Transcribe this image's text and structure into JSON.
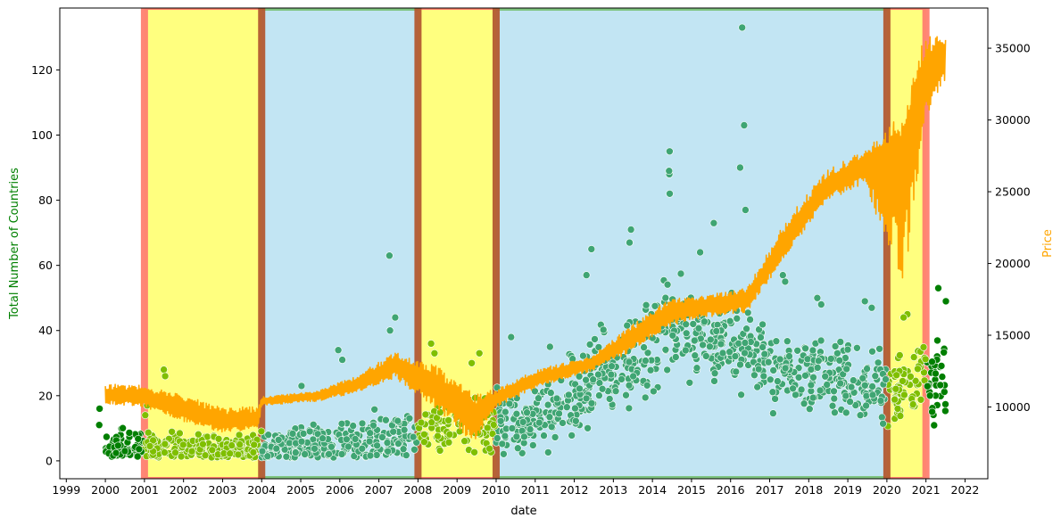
{
  "chart_data": {
    "type": "scatter",
    "xlabel": "date",
    "ylabel_left": "Total Number of Countries",
    "ylabel_right": "Price",
    "x_range": [
      "1998-11-01",
      "2022-08-01"
    ],
    "y_left_range": [
      -5.5,
      139
    ],
    "y_right_range": [
      5000,
      37800
    ],
    "x_ticks": [
      "1999",
      "2000",
      "2001",
      "2002",
      "2003",
      "2004",
      "2005",
      "2006",
      "2007",
      "2008",
      "2009",
      "2010",
      "2011",
      "2012",
      "2013",
      "2014",
      "2015",
      "2016",
      "2017",
      "2018",
      "2019",
      "2020",
      "2021",
      "2022"
    ],
    "y_left_ticks": [
      0,
      20,
      40,
      60,
      80,
      100,
      120
    ],
    "y_right_ticks": [
      10000,
      15000,
      20000,
      25000,
      30000,
      35000
    ],
    "regions": [
      {
        "start": "2001-01-01",
        "end": "2004-01-01",
        "color": "#ffff7f",
        "kind": "yellow"
      },
      {
        "start": "2004-01-01",
        "end": "2008-01-01",
        "color": "#c2e5f3",
        "kind": "blue"
      },
      {
        "start": "2008-01-01",
        "end": "2010-01-01",
        "color": "#ffff7f",
        "kind": "yellow"
      },
      {
        "start": "2010-01-01",
        "end": "2020-01-01",
        "color": "#c2e5f3",
        "kind": "blue"
      },
      {
        "start": "2020-01-01",
        "end": "2021-01-01",
        "color": "#ffff7f",
        "kind": "yellow"
      }
    ],
    "boundaries": [
      "2001-01-01",
      "2004-01-01",
      "2008-01-01",
      "2010-01-01",
      "2020-01-01",
      "2021-01-01"
    ],
    "countries_trend": [
      {
        "date": "2000-01-01",
        "center": 4,
        "spread": 4,
        "outliers": [
          16,
          11
        ]
      },
      {
        "date": "2001-01-01",
        "center": 4,
        "spread": 4,
        "outliers": [
          17,
          14
        ]
      },
      {
        "date": "2001-06-01",
        "center": 4,
        "spread": 4,
        "outliers": [
          28,
          26
        ]
      },
      {
        "date": "2003-01-01",
        "center": 3,
        "spread": 3,
        "outliers": [
          12
        ]
      },
      {
        "date": "2004-01-01",
        "center": 4,
        "spread": 3,
        "outliers": [
          8
        ]
      },
      {
        "date": "2005-01-01",
        "center": 5,
        "spread": 4,
        "outliers": [
          23
        ]
      },
      {
        "date": "2006-01-01",
        "center": 5,
        "spread": 5,
        "outliers": [
          34,
          31
        ]
      },
      {
        "date": "2007-06-01",
        "center": 7,
        "spread": 6,
        "outliers": [
          63,
          44,
          40
        ]
      },
      {
        "date": "2008-06-01",
        "center": 10,
        "spread": 6,
        "outliers": [
          36,
          33
        ]
      },
      {
        "date": "2009-06-01",
        "center": 12,
        "spread": 7,
        "outliers": [
          33,
          30
        ]
      },
      {
        "date": "2010-06-01",
        "center": 12,
        "spread": 7,
        "outliers": [
          38
        ]
      },
      {
        "date": "2011-06-01",
        "center": 14,
        "spread": 8,
        "outliers": [
          35
        ]
      },
      {
        "date": "2012-06-01",
        "center": 24,
        "spread": 10,
        "outliers": [
          57,
          65
        ]
      },
      {
        "date": "2013-06-01",
        "center": 30,
        "spread": 10,
        "outliers": [
          71,
          67
        ]
      },
      {
        "date": "2014-06-01",
        "center": 42,
        "spread": 12,
        "outliers": [
          95,
          88,
          89,
          82
        ]
      },
      {
        "date": "2015-06-01",
        "center": 38,
        "spread": 10,
        "outliers": [
          73,
          64
        ]
      },
      {
        "date": "2016-06-01",
        "center": 35,
        "spread": 10,
        "outliers": [
          133,
          103,
          90,
          77
        ]
      },
      {
        "date": "2017-06-01",
        "center": 28,
        "spread": 9,
        "outliers": [
          57,
          55
        ]
      },
      {
        "date": "2018-06-01",
        "center": 27,
        "spread": 9,
        "outliers": [
          50,
          48
        ]
      },
      {
        "date": "2019-06-01",
        "center": 24,
        "spread": 9,
        "outliers": [
          49,
          47
        ]
      },
      {
        "date": "2020-06-01",
        "center": 22,
        "spread": 10,
        "outliers": [
          45,
          44
        ]
      },
      {
        "date": "2021-06-01",
        "center": 28,
        "spread": 10,
        "outliers": [
          53,
          49
        ]
      }
    ],
    "price_trend": [
      {
        "date": "2000-01-01",
        "low": 10200,
        "mid": 10800,
        "high": 11600
      },
      {
        "date": "2001-01-01",
        "low": 10000,
        "mid": 10700,
        "high": 11500
      },
      {
        "date": "2002-01-01",
        "low": 9000,
        "mid": 9800,
        "high": 10800
      },
      {
        "date": "2003-01-01",
        "low": 8200,
        "mid": 8900,
        "high": 10000
      },
      {
        "date": "2003-12-01",
        "low": 8500,
        "mid": 9200,
        "high": 10000
      },
      {
        "date": "2004-01-01",
        "low": 10100,
        "mid": 10400,
        "high": 10700
      },
      {
        "date": "2005-06-01",
        "low": 10400,
        "mid": 10800,
        "high": 11100
      },
      {
        "date": "2006-06-01",
        "low": 11000,
        "mid": 11500,
        "high": 12200
      },
      {
        "date": "2007-06-01",
        "low": 12000,
        "mid": 12900,
        "high": 13800
      },
      {
        "date": "2008-06-01",
        "low": 10000,
        "mid": 11500,
        "high": 13000
      },
      {
        "date": "2009-06-01",
        "low": 7500,
        "mid": 9200,
        "high": 11000
      },
      {
        "date": "2010-01-01",
        "low": 10000,
        "mid": 10600,
        "high": 11200
      },
      {
        "date": "2011-01-01",
        "low": 11300,
        "mid": 11900,
        "high": 12600
      },
      {
        "date": "2012-06-01",
        "low": 12500,
        "mid": 13000,
        "high": 13500
      },
      {
        "date": "2013-06-01",
        "low": 13800,
        "mid": 14700,
        "high": 15600
      },
      {
        "date": "2014-06-01",
        "low": 15600,
        "mid": 16600,
        "high": 17500
      },
      {
        "date": "2015-06-01",
        "low": 16200,
        "mid": 17100,
        "high": 17800
      },
      {
        "date": "2016-06-01",
        "low": 16600,
        "mid": 17500,
        "high": 18300
      },
      {
        "date": "2017-06-01",
        "low": 20500,
        "mid": 21500,
        "high": 23000
      },
      {
        "date": "2018-06-01",
        "low": 24300,
        "mid": 25200,
        "high": 26400
      },
      {
        "date": "2019-06-01",
        "low": 25500,
        "mid": 26800,
        "high": 28000
      },
      {
        "date": "2020-06-01",
        "low": 18000,
        "mid": 27000,
        "high": 30500
      },
      {
        "date": "2021-01-01",
        "low": 30000,
        "mid": 33000,
        "high": 36300
      },
      {
        "date": "2021-06-01",
        "low": 32500,
        "mid": 34300,
        "high": 35700
      }
    ],
    "colors": {
      "price_line": "#ffa500",
      "ylabel_left": "#008000",
      "ylabel_right": "#ffa500",
      "scatter_outside": "#007f00",
      "scatter_in_yellow": "#7fbf00",
      "scatter_in_blue": "#3fa573",
      "boundary_red": "#ff7f70",
      "boundary_brown": "#b35a32",
      "green_edge": "#7fc47f"
    }
  }
}
